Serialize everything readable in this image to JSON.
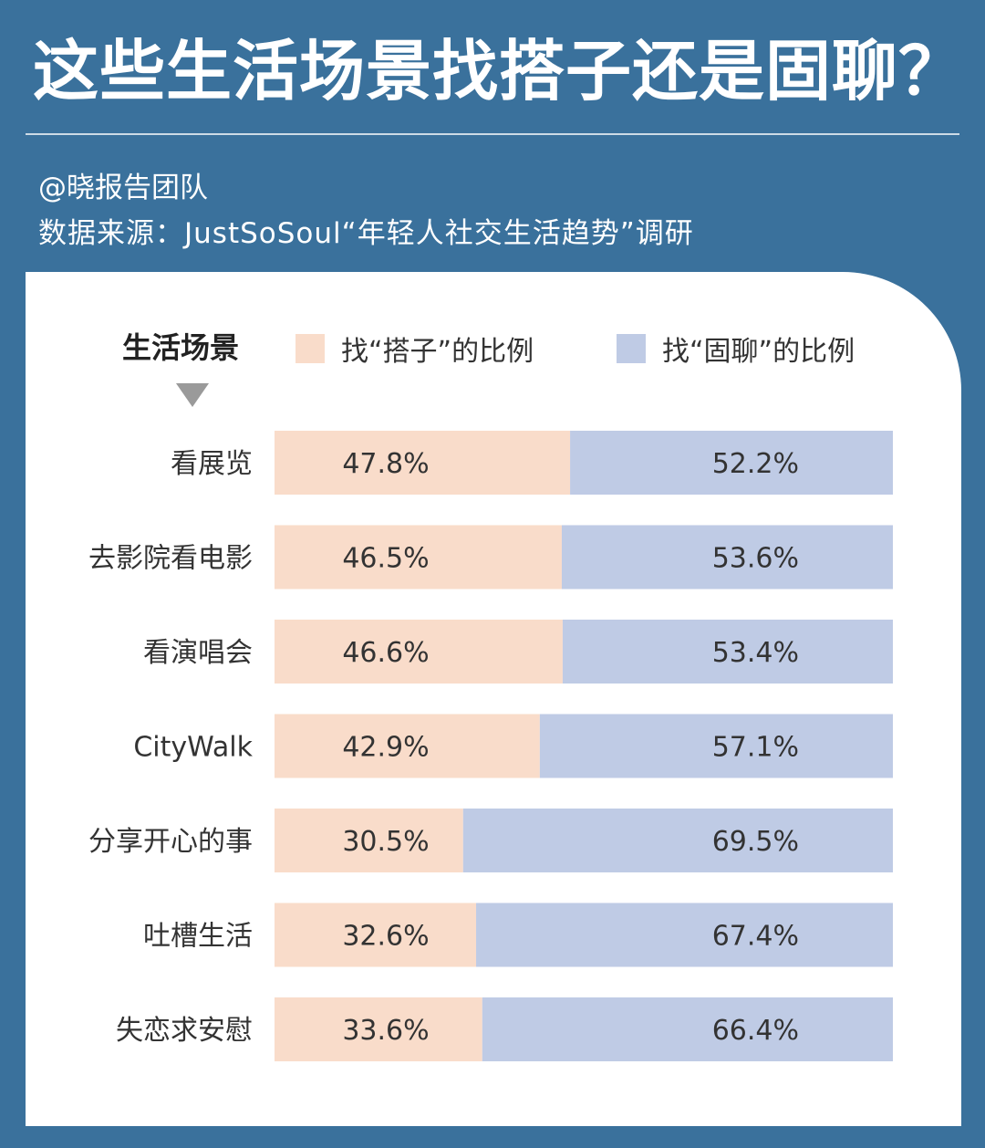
{
  "header": {
    "title": "这些生活场景找搭子还是固聊？",
    "author": "@晓报告团队",
    "source": "数据来源：JustSoSoul“年轻人社交生活趋势”调研"
  },
  "colors": {
    "background": "#3a719c",
    "dazi": "#f9dcca",
    "guliao": "#bfcbe5"
  },
  "chart_data": {
    "type": "bar",
    "stacked": true,
    "orientation": "horizontal",
    "category_header": "生活场景",
    "categories": [
      "看展览",
      "去影院看电影",
      "看演唱会",
      "CityWalk",
      "分享开心的事",
      "吐槽生活",
      "失恋求安慰"
    ],
    "series": [
      {
        "name": "找“搭子”的比例",
        "values": [
          47.8,
          46.5,
          46.6,
          42.9,
          30.5,
          32.6,
          33.6
        ],
        "labels": [
          "47.8%",
          "46.5%",
          "46.6%",
          "42.9%",
          "30.5%",
          "32.6%",
          "33.6%"
        ]
      },
      {
        "name": "找“固聊”的比例",
        "values": [
          52.2,
          53.6,
          53.4,
          57.1,
          69.5,
          67.4,
          66.4
        ],
        "labels": [
          "52.2%",
          "53.6%",
          "53.4%",
          "57.1%",
          "69.5%",
          "67.4%",
          "66.4%"
        ]
      }
    ],
    "xlim": [
      0,
      100
    ],
    "legend": "top"
  }
}
